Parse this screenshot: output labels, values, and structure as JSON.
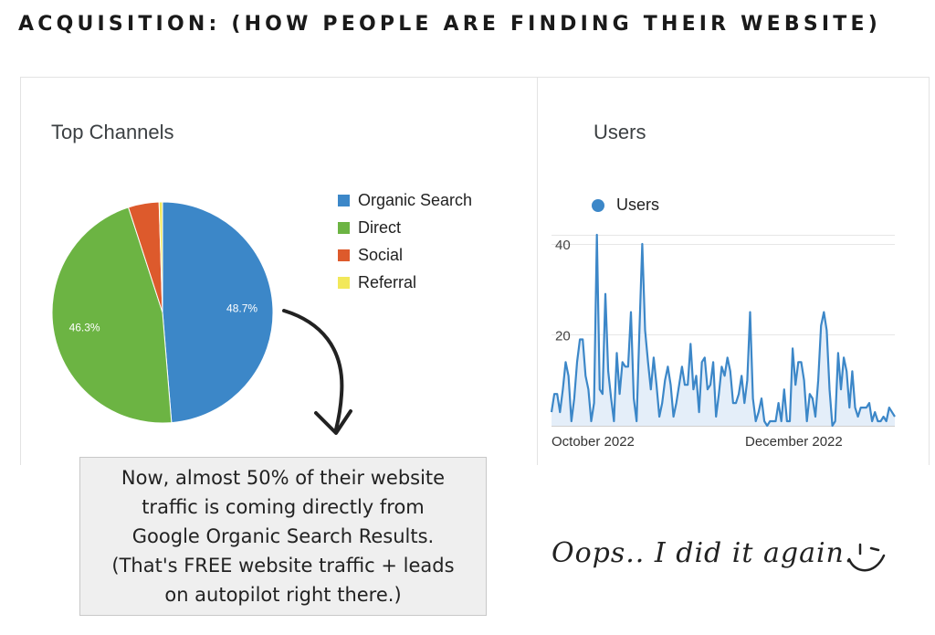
{
  "heading": "ACQUISITION: (HOW PEOPLE ARE FINDING THEIR WEBSITE)",
  "callout": {
    "lines": [
      "Now, almost 50% of their website",
      "traffic is coming directly from",
      "Google Organic Search Results.",
      "(That's FREE website traffic + leads",
      "on autopilot right there.)"
    ]
  },
  "signature": "Oops.. I did it again.",
  "colors": {
    "organic": "#3c87c8",
    "direct": "#6cb443",
    "social": "#dd5a2c",
    "referral": "#f2e85a",
    "line": "#3c87c8",
    "area": "#e4eef9"
  },
  "icons": [
    "curved-arrow-icon",
    "wink-smiley-icon"
  ],
  "chart_data": [
    {
      "type": "pie",
      "title": "Top Channels",
      "slices": [
        {
          "label": "Organic Search",
          "value": 48.7,
          "data_label": "48.7%"
        },
        {
          "label": "Direct",
          "value": 46.3,
          "data_label": "46.3%"
        },
        {
          "label": "Social",
          "value": 4.5,
          "data_label": ""
        },
        {
          "label": "Referral",
          "value": 0.5,
          "data_label": ""
        }
      ],
      "legend_position": "right"
    },
    {
      "type": "line",
      "title": "Users",
      "series": [
        {
          "name": "Users",
          "values": [
            3,
            7,
            7,
            3,
            8,
            14,
            11,
            1,
            6,
            14,
            19,
            19,
            11,
            8,
            1,
            5,
            42,
            8,
            7,
            29,
            12,
            6,
            1,
            16,
            7,
            14,
            13,
            13,
            25,
            6,
            1,
            21,
            40,
            21,
            14,
            8,
            15,
            9,
            2,
            5,
            10,
            13,
            9,
            2,
            5,
            9,
            13,
            9,
            9,
            18,
            8,
            11,
            3,
            14,
            15,
            8,
            9,
            14,
            2,
            7,
            13,
            11,
            15,
            12,
            5,
            5,
            7,
            11,
            5,
            10,
            25,
            6,
            1,
            3,
            6,
            1,
            0,
            1,
            1,
            1,
            5,
            1,
            8,
            1,
            1,
            17,
            9,
            14,
            14,
            10,
            1,
            7,
            6,
            2,
            10,
            22,
            25,
            21,
            8,
            0,
            1,
            16,
            8,
            15,
            12,
            4,
            12,
            4,
            2,
            4,
            4,
            4,
            5,
            1,
            3,
            1,
            1,
            2,
            1,
            4,
            3,
            2
          ]
        }
      ],
      "y_ticks": [
        20,
        40
      ],
      "ylim": [
        0,
        42
      ],
      "x_labels": [
        "October 2022",
        "December 2022"
      ],
      "legend_position": "top-left",
      "grid": true
    }
  ]
}
